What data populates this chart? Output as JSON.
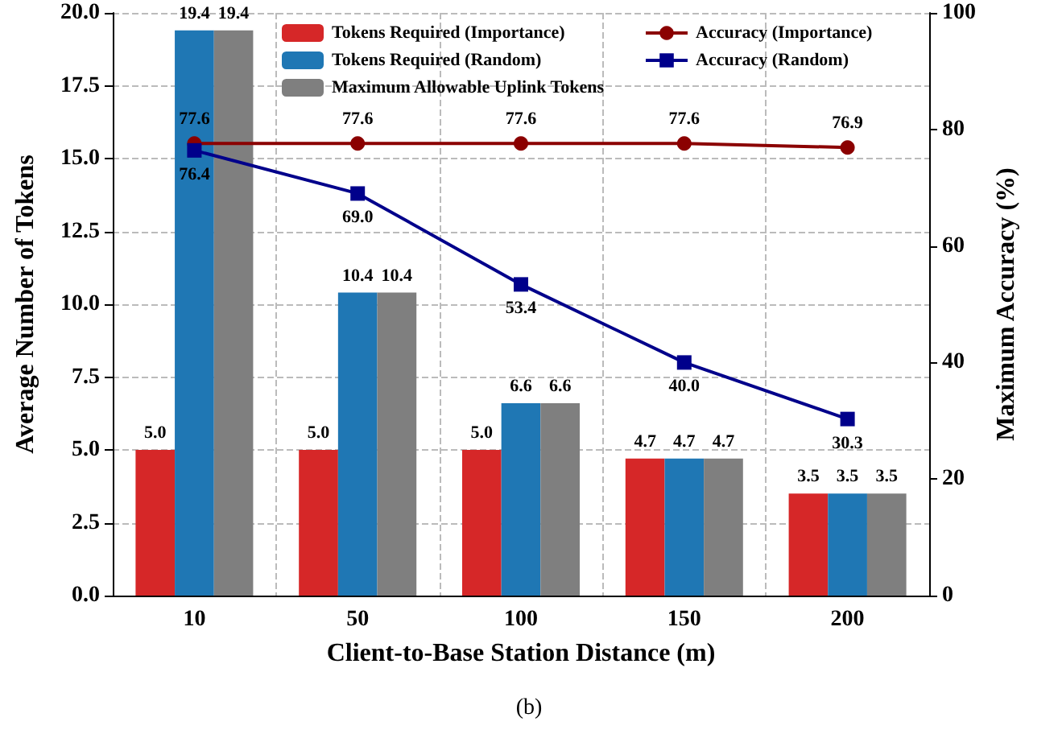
{
  "chart_data": {
    "type": "bar",
    "xlabel": "Client-to-Base Station Distance (m)",
    "ylabel": "Average Number of Tokens",
    "y2label": "Maximum Accuracy (%)",
    "annotations": [
      "(b)"
    ],
    "categories": [
      "10",
      "50",
      "100",
      "150",
      "200"
    ],
    "series": [
      {
        "name": "Tokens Required (Importance)",
        "color": "#d62728",
        "values": [
          5.0,
          5.0,
          5.0,
          4.7,
          3.5
        ],
        "value_labels": [
          "5.0",
          "5.0",
          "5.0",
          "4.7",
          "3.5"
        ]
      },
      {
        "name": "Tokens Required (Random)",
        "color": "#1f77b4",
        "values": [
          19.4,
          10.4,
          6.6,
          4.7,
          3.5
        ],
        "value_labels": [
          "19.4",
          "10.4",
          "6.6",
          "4.7",
          "3.5"
        ]
      },
      {
        "name": "Maximum Allowable Uplink Tokens",
        "color": "#7f7f7f",
        "values": [
          19.4,
          10.4,
          6.6,
          4.7,
          3.5
        ],
        "value_labels": [
          "19.4",
          "10.4",
          "6.6",
          "4.7",
          "3.5"
        ]
      },
      {
        "name": "Accuracy (Importance)",
        "type": "line",
        "axis": "y2",
        "marker": "circle",
        "color": "#8b0000",
        "values": [
          77.6,
          77.6,
          77.6,
          77.6,
          76.9
        ],
        "value_labels": [
          "77.6",
          "77.6",
          "77.6",
          "77.6",
          "76.9"
        ]
      },
      {
        "name": "Accuracy (Random)",
        "type": "line",
        "axis": "y2",
        "marker": "square",
        "color": "#00008b",
        "values": [
          76.4,
          69.0,
          53.4,
          40.0,
          30.3
        ],
        "value_labels": [
          "76.4",
          "69.0",
          "53.4",
          "40.0",
          "30.3"
        ]
      }
    ],
    "ylim": [
      0,
      20
    ],
    "yticks": [
      {
        "value": 0,
        "label": "0.0"
      },
      {
        "value": 2.5,
        "label": "2.5"
      },
      {
        "value": 5,
        "label": "5.0"
      },
      {
        "value": 7.5,
        "label": "7.5"
      },
      {
        "value": 10,
        "label": "10.0"
      },
      {
        "value": 12.5,
        "label": "12.5"
      },
      {
        "value": 15,
        "label": "15.0"
      },
      {
        "value": 17.5,
        "label": "17.5"
      },
      {
        "value": 20,
        "label": "20.0"
      }
    ],
    "y2lim": [
      0,
      100
    ],
    "y2ticks": [
      0,
      20,
      40,
      60,
      80,
      100
    ],
    "grid": true,
    "legend": "top"
  }
}
